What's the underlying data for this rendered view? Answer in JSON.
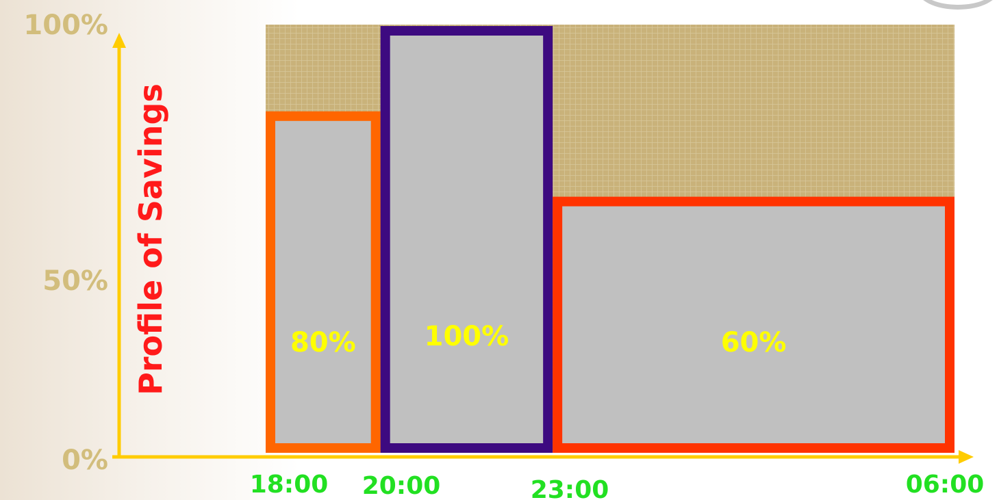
{
  "chart_data": {
    "type": "bar",
    "ylabel": "Profile of Savings",
    "ylim": [
      0,
      100
    ],
    "y_ticks": [
      "0%",
      "50%",
      "100%"
    ],
    "x_ticks": [
      "18:00",
      "20:00",
      "23:00",
      "06:00"
    ],
    "bars": [
      {
        "start": "18:00",
        "end": "20:00",
        "value": 80,
        "label": "80%",
        "border": "#ff6600"
      },
      {
        "start": "20:00",
        "end": "23:00",
        "value": 100,
        "label": "100%",
        "border": "#3d0a80"
      },
      {
        "start": "23:00",
        "end": "06:00",
        "value": 60,
        "label": "60%",
        "border": "#ff3300"
      }
    ],
    "colors": {
      "bar_fill": "#c0c0c0",
      "axis": "#ffcc00",
      "background_pattern": "#c9b27a"
    }
  }
}
